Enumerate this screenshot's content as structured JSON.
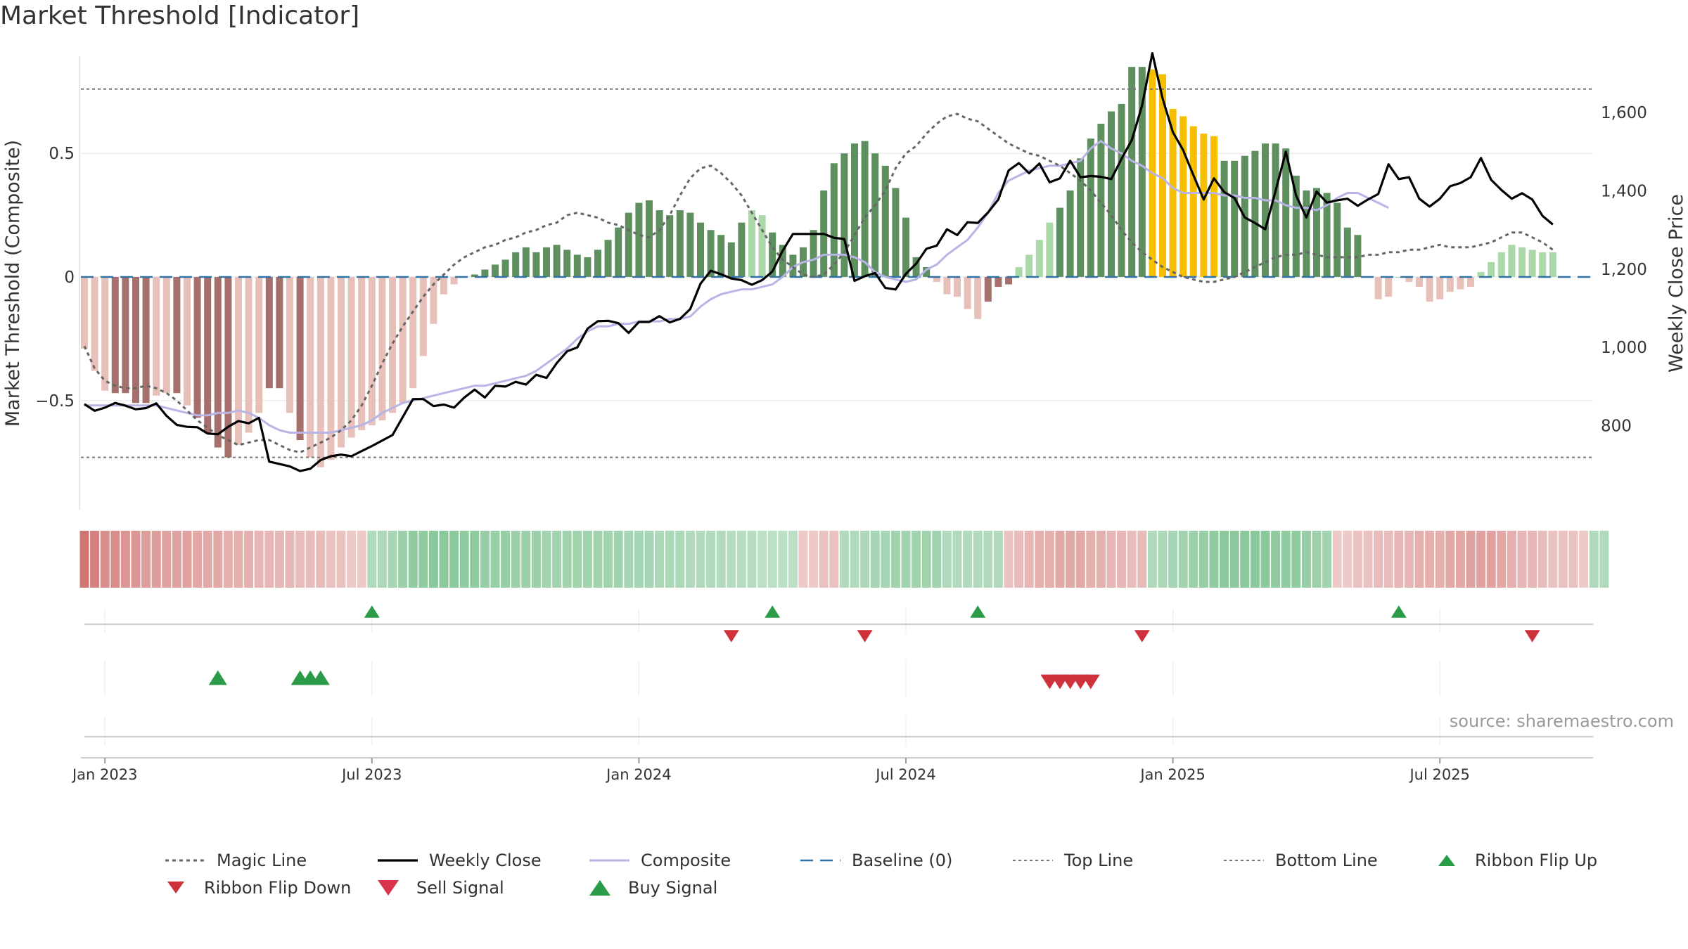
{
  "title": "Market Threshold [Indicator]",
  "source": "source: sharemaestro.com",
  "colors": {
    "bar_strong_green": "#5e8f5e",
    "bar_light_green": "#acd7a8",
    "bar_strong_red": "#a56f6b",
    "bar_light_red": "#e8c0ba",
    "bar_gold": "#f6c000",
    "weekly_close": "#000000",
    "composite": "#b9b4e6",
    "magic_line": "#666666",
    "baseline": "#2f73a9",
    "threshold_lines": "#777777",
    "buy": "#2a9c48",
    "sell": "#d0323c"
  },
  "chart_data": {
    "type": "bar",
    "title": "Market Threshold [Indicator]",
    "ylabel": "Market Threshold (Composite)",
    "y2label": "Weekly Close Price",
    "ylim": [
      -0.95,
      0.95
    ],
    "y2lim": [
      580,
      1780
    ],
    "yticks": [
      {
        "v": 0.5,
        "label": "0.5"
      },
      {
        "v": 0,
        "label": "0"
      },
      {
        "v": -0.5,
        "label": "−0.5"
      }
    ],
    "y2ticks": [
      {
        "v": 1600,
        "label": "1,600"
      },
      {
        "v": 1400,
        "label": "1,400"
      },
      {
        "v": 1200,
        "label": "1,200"
      },
      {
        "v": 1000,
        "label": "1,000"
      },
      {
        "v": 800,
        "label": "800"
      }
    ],
    "xticks": [
      {
        "week": 2,
        "label": "Jan 2023"
      },
      {
        "week": 28,
        "label": "Jul 2023"
      },
      {
        "week": 54,
        "label": "Jan 2024"
      },
      {
        "week": 80,
        "label": "Jul 2024"
      },
      {
        "week": 106,
        "label": "Jan 2025"
      },
      {
        "week": 132,
        "label": "Jul 2025"
      }
    ],
    "weeks": 144,
    "top_line": 0.76,
    "bottom_line": -0.73,
    "baseline": 0,
    "composite_bars": [
      -0.29,
      -0.38,
      -0.46,
      -0.47,
      -0.47,
      -0.51,
      -0.51,
      -0.48,
      -0.47,
      -0.47,
      -0.52,
      -0.57,
      -0.63,
      -0.69,
      -0.73,
      -0.68,
      -0.63,
      -0.55,
      -0.45,
      -0.45,
      -0.55,
      -0.66,
      -0.73,
      -0.77,
      -0.74,
      -0.69,
      -0.65,
      -0.62,
      -0.6,
      -0.58,
      -0.55,
      -0.51,
      -0.45,
      -0.32,
      -0.19,
      -0.07,
      -0.03,
      0.0,
      0.01,
      0.03,
      0.05,
      0.07,
      0.1,
      0.12,
      0.1,
      0.12,
      0.13,
      0.11,
      0.09,
      0.08,
      0.11,
      0.15,
      0.2,
      0.26,
      0.3,
      0.31,
      0.27,
      0.25,
      0.27,
      0.26,
      0.22,
      0.19,
      0.17,
      0.14,
      0.22,
      0.27,
      0.25,
      0.18,
      0.13,
      0.09,
      0.12,
      0.19,
      0.35,
      0.46,
      0.5,
      0.54,
      0.55,
      0.5,
      0.45,
      0.36,
      0.24,
      0.08,
      0.04,
      -0.02,
      -0.07,
      -0.08,
      -0.13,
      -0.17,
      -0.1,
      -0.04,
      -0.03,
      0.04,
      0.09,
      0.15,
      0.22,
      0.28,
      0.35,
      0.48,
      0.56,
      0.62,
      0.67,
      0.7,
      0.85,
      0.85,
      0.84,
      0.82,
      0.68,
      0.65,
      0.61,
      0.58,
      0.57,
      0.47,
      0.47,
      0.49,
      0.51,
      0.54,
      0.54,
      0.52,
      0.41,
      0.35,
      0.36,
      0.34,
      0.3,
      0.2,
      0.17,
      0.0,
      -0.09,
      -0.08,
      0.0,
      -0.02,
      -0.04,
      -0.1,
      -0.09,
      -0.06,
      -0.05,
      -0.04,
      0.02,
      0.06,
      0.1,
      0.13,
      0.12,
      0.11,
      0.1,
      0.1
    ],
    "bar_style": "LLLDDDDLLDLDDDDGLLDDLDGGGLLLLLLLLLLLLLGGGGGGGGGGGGGGGGGGGGGGGGGGGLLGGGGGGGGGGGGGGGGGLLLLDDDDLLLGGGGGGGGGOOOOOOOGGGGGGGGGGGGGGGGLLLLLLLLLLLLLLLLLGGGGGGGGGGGGGGGG",
    "weekly_close_x_week": [
      0,
      1,
      2,
      3,
      4,
      5,
      6,
      7,
      8,
      9,
      10,
      11,
      12,
      13,
      14,
      15,
      16,
      17,
      18,
      19,
      20,
      21,
      22,
      23,
      24,
      25,
      26,
      27,
      28,
      29,
      30,
      31,
      32,
      33,
      34,
      35,
      36,
      37,
      38,
      39,
      40,
      41,
      42,
      43,
      44,
      45,
      46,
      47,
      48,
      49,
      50,
      51,
      52,
      53,
      54,
      55,
      56,
      57,
      58,
      59,
      60,
      61,
      62,
      63,
      64,
      65,
      66,
      67,
      68,
      69,
      70,
      71,
      72,
      73,
      74,
      75,
      76,
      77,
      78,
      79,
      80,
      81,
      82,
      83,
      84,
      85,
      86,
      87,
      88,
      89,
      90,
      91,
      92,
      93,
      94,
      95,
      96,
      97,
      98,
      99,
      100,
      101,
      102,
      103,
      104,
      105,
      106,
      107,
      108,
      109,
      110,
      111,
      112,
      113,
      114,
      115,
      116,
      117,
      118,
      119,
      120,
      121,
      122,
      123,
      124,
      125,
      126,
      127,
      128,
      129,
      130,
      131,
      132,
      133,
      134,
      135,
      136,
      137,
      138,
      139,
      140,
      141,
      142,
      143
    ],
    "weekly_close": [
      855,
      838,
      846,
      858,
      851,
      842,
      845,
      857,
      825,
      802,
      797,
      796,
      780,
      778,
      797,
      812,
      806,
      820,
      708,
      702,
      696,
      684,
      690,
      712,
      722,
      726,
      722,
      735,
      748,
      762,
      776,
      822,
      868,
      868,
      850,
      854,
      846,
      872,
      892,
      872,
      902,
      900,
      912,
      905,
      930,
      922,
      960,
      990,
      1000,
      1048,
      1067,
      1068,
      1062,
      1037,
      1065,
      1065,
      1080,
      1064,
      1073,
      1098,
      1163,
      1196,
      1187,
      1176,
      1172,
      1160,
      1172,
      1194,
      1247,
      1290,
      1290,
      1290,
      1290,
      1280,
      1277,
      1170,
      1182,
      1190,
      1152,
      1148,
      1188,
      1214,
      1252,
      1260,
      1302,
      1287,
      1320,
      1318,
      1345,
      1378,
      1452,
      1471,
      1445,
      1470,
      1422,
      1432,
      1477,
      1435,
      1438,
      1436,
      1430,
      1482,
      1530,
      1618,
      1752,
      1636,
      1550,
      1504,
      1440,
      1378,
      1432,
      1397,
      1382,
      1332,
      1318,
      1302,
      1400,
      1500,
      1388,
      1332,
      1398,
      1370,
      1376,
      1380,
      1362,
      1378,
      1392,
      1468,
      1430,
      1435,
      1380,
      1360,
      1380,
      1412,
      1420,
      1435,
      1484,
      1428,
      1402,
      1380,
      1394,
      1378,
      1336,
      1314
    ],
    "composite_line": [
      -0.52,
      -0.52,
      -0.52,
      -0.52,
      -0.52,
      -0.52,
      -0.52,
      -0.52,
      -0.53,
      -0.54,
      -0.55,
      -0.56,
      -0.56,
      -0.55,
      -0.55,
      -0.54,
      -0.55,
      -0.57,
      -0.6,
      -0.62,
      -0.63,
      -0.63,
      -0.63,
      -0.63,
      -0.63,
      -0.62,
      -0.61,
      -0.6,
      -0.58,
      -0.55,
      -0.53,
      -0.51,
      -0.5,
      -0.49,
      -0.48,
      -0.47,
      -0.46,
      -0.45,
      -0.44,
      -0.44,
      -0.43,
      -0.42,
      -0.41,
      -0.4,
      -0.38,
      -0.35,
      -0.32,
      -0.29,
      -0.25,
      -0.22,
      -0.2,
      -0.2,
      -0.19,
      -0.19,
      -0.18,
      -0.18,
      -0.18,
      -0.17,
      -0.17,
      -0.16,
      -0.12,
      -0.09,
      -0.07,
      -0.06,
      -0.05,
      -0.05,
      -0.04,
      -0.03,
      0.0,
      0.04,
      0.06,
      0.07,
      0.09,
      0.09,
      0.09,
      0.08,
      0.06,
      0.02,
      0.0,
      -0.01,
      -0.02,
      -0.01,
      0.03,
      0.05,
      0.09,
      0.12,
      0.15,
      0.2,
      0.26,
      0.34,
      0.39,
      0.41,
      0.43,
      0.44,
      0.45,
      0.45,
      0.46,
      0.47,
      0.52,
      0.55,
      0.52,
      0.5,
      0.47,
      0.45,
      0.42,
      0.4,
      0.36,
      0.34,
      0.34,
      0.34,
      0.34,
      0.33,
      0.33,
      0.32,
      0.32,
      0.31,
      0.31,
      0.29,
      0.28,
      0.28,
      0.27,
      0.29,
      0.32,
      0.34,
      0.34,
      0.32,
      0.3,
      0.28
    ],
    "magic_line": [
      -0.28,
      -0.37,
      -0.42,
      -0.44,
      -0.45,
      -0.45,
      -0.44,
      -0.45,
      -0.47,
      -0.5,
      -0.54,
      -0.58,
      -0.61,
      -0.64,
      -0.66,
      -0.68,
      -0.67,
      -0.66,
      -0.66,
      -0.68,
      -0.7,
      -0.71,
      -0.69,
      -0.67,
      -0.65,
      -0.62,
      -0.58,
      -0.52,
      -0.44,
      -0.35,
      -0.27,
      -0.2,
      -0.14,
      -0.08,
      -0.03,
      0.01,
      0.05,
      0.08,
      0.1,
      0.12,
      0.13,
      0.15,
      0.16,
      0.18,
      0.19,
      0.21,
      0.22,
      0.25,
      0.26,
      0.25,
      0.24,
      0.22,
      0.21,
      0.19,
      0.17,
      0.16,
      0.19,
      0.25,
      0.33,
      0.4,
      0.44,
      0.45,
      0.42,
      0.38,
      0.33,
      0.26,
      0.19,
      0.12,
      0.07,
      0.04,
      0.01,
      0.0,
      0.01,
      0.05,
      0.1,
      0.17,
      0.24,
      0.29,
      0.35,
      0.44,
      0.5,
      0.53,
      0.58,
      0.62,
      0.65,
      0.66,
      0.64,
      0.63,
      0.6,
      0.57,
      0.54,
      0.52,
      0.5,
      0.49,
      0.47,
      0.45,
      0.42,
      0.39,
      0.35,
      0.3,
      0.25,
      0.19,
      0.14,
      0.1,
      0.07,
      0.04,
      0.02,
      0.0,
      -0.01,
      -0.02,
      -0.02,
      -0.01,
      0.0,
      0.02,
      0.04,
      0.06,
      0.08,
      0.09,
      0.09,
      0.1,
      0.09,
      0.08,
      0.08,
      0.08,
      0.08,
      0.09,
      0.09,
      0.1,
      0.1,
      0.11,
      0.11,
      0.12,
      0.13,
      0.12,
      0.12,
      0.12,
      0.13,
      0.14,
      0.16,
      0.18,
      0.18,
      0.16,
      0.14,
      0.11
    ],
    "ribbon": [
      -0.8,
      -0.7,
      -0.6,
      -0.6,
      -0.55,
      -0.55,
      -0.5,
      -0.5,
      -0.45,
      -0.45,
      -0.45,
      -0.4,
      -0.4,
      -0.4,
      -0.35,
      -0.35,
      -0.35,
      -0.3,
      -0.3,
      -0.3,
      -0.3,
      -0.25,
      -0.25,
      -0.25,
      -0.2,
      -0.2,
      -0.15,
      -0.15,
      0.3,
      0.35,
      0.4,
      0.5,
      0.6,
      0.6,
      0.65,
      0.65,
      0.65,
      0.6,
      0.6,
      0.55,
      0.55,
      0.55,
      0.5,
      0.5,
      0.5,
      0.45,
      0.45,
      0.45,
      0.45,
      0.45,
      0.45,
      0.45,
      0.45,
      0.4,
      0.4,
      0.4,
      0.35,
      0.35,
      0.35,
      0.3,
      0.3,
      0.3,
      0.3,
      0.25,
      0.25,
      0.25,
      0.2,
      0.2,
      0.2,
      0.2,
      -0.15,
      -0.15,
      -0.2,
      -0.2,
      0.3,
      0.3,
      0.35,
      0.4,
      0.4,
      0.45,
      0.45,
      0.45,
      0.45,
      0.45,
      0.3,
      0.3,
      0.3,
      0.3,
      0.3,
      0.3,
      -0.2,
      -0.25,
      -0.3,
      -0.35,
      -0.35,
      -0.4,
      -0.4,
      -0.4,
      -0.35,
      -0.35,
      -0.3,
      -0.3,
      -0.25,
      -0.25,
      0.3,
      0.35,
      0.4,
      0.45,
      0.5,
      0.55,
      0.6,
      0.65,
      0.65,
      0.65,
      0.65,
      0.65,
      0.6,
      0.6,
      0.6,
      0.55,
      0.5,
      0.45,
      -0.15,
      -0.15,
      -0.2,
      -0.2,
      -0.25,
      -0.25,
      -0.3,
      -0.3,
      -0.35,
      -0.35,
      -0.35,
      -0.4,
      -0.4,
      -0.45,
      -0.45,
      -0.45,
      -0.4,
      -0.35,
      -0.3,
      -0.3,
      -0.25,
      -0.2,
      -0.2,
      -0.2,
      -0.15,
      0.3,
      0.3
    ],
    "ribbon_flip_up": [
      28,
      67,
      87,
      128
    ],
    "ribbon_flip_down": [
      63,
      76,
      103,
      141
    ],
    "buy_signal": [
      13,
      21,
      22,
      23
    ],
    "sell_signal": [
      94,
      95,
      96,
      97,
      98
    ]
  },
  "legend": [
    {
      "key": "magic",
      "label": "Magic Line"
    },
    {
      "key": "weekly",
      "label": "Weekly Close"
    },
    {
      "key": "composite",
      "label": "Composite"
    },
    {
      "key": "baseline",
      "label": "Baseline (0)"
    },
    {
      "key": "top",
      "label": "Top Line"
    },
    {
      "key": "bottom",
      "label": "Bottom Line"
    },
    {
      "key": "flipup",
      "label": "Ribbon Flip Up"
    },
    {
      "key": "flipdown",
      "label": "Ribbon Flip Down"
    },
    {
      "key": "sell",
      "label": "Sell Signal"
    },
    {
      "key": "buy",
      "label": "Buy Signal"
    }
  ]
}
